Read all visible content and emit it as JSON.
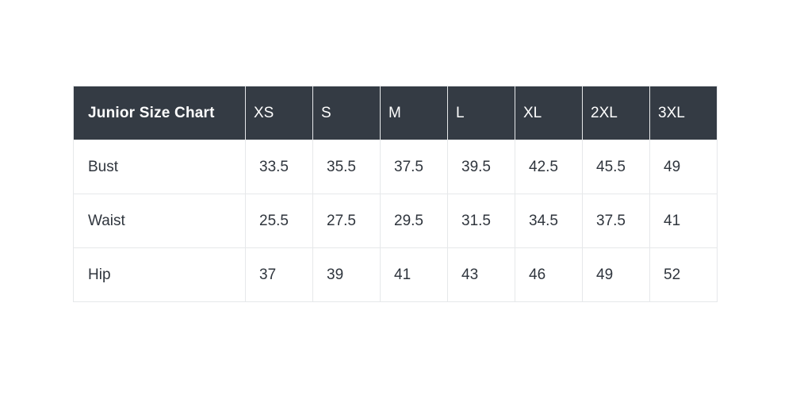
{
  "chart_data": {
    "type": "table",
    "title": "Junior Size Chart",
    "columns": [
      "XS",
      "S",
      "M",
      "L",
      "XL",
      "2XL",
      "3XL"
    ],
    "rows": [
      {
        "label": "Bust",
        "values": [
          "33.5",
          "35.5",
          "37.5",
          "39.5",
          "42.5",
          "45.5",
          "49"
        ]
      },
      {
        "label": "Waist",
        "values": [
          "25.5",
          "27.5",
          "29.5",
          "31.5",
          "34.5",
          "37.5",
          "41"
        ]
      },
      {
        "label": "Hip",
        "values": [
          "37",
          "39",
          "41",
          "43",
          "46",
          "49",
          "52"
        ]
      }
    ],
    "layout": {
      "legend": "none",
      "grid": "full-borders"
    }
  },
  "colors": {
    "page_background": "#ffffff",
    "header_background": "#343b44",
    "header_text": "#ffffff",
    "body_text": "#2f353d",
    "border": "#e6e8ea"
  }
}
